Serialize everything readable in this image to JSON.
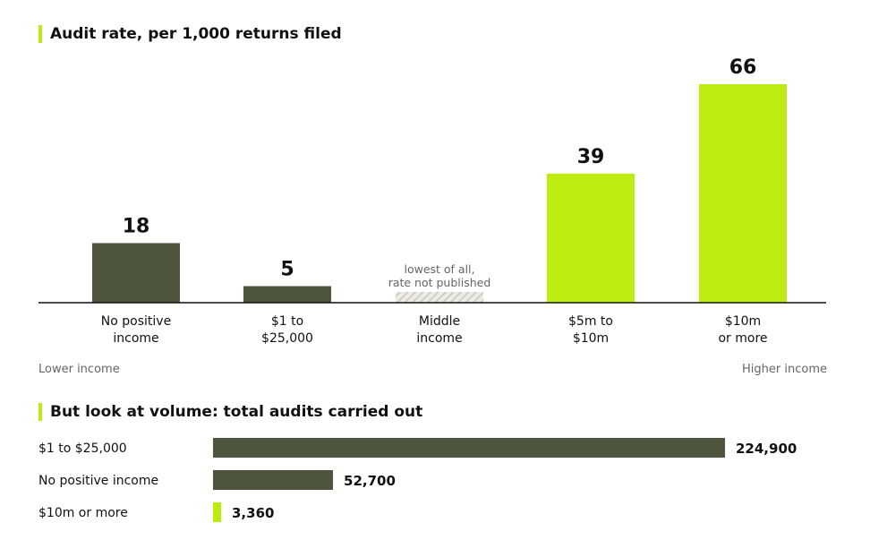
{
  "colors": {
    "dark": "#4d553d",
    "accent": "#bdec11",
    "hatch": "#d8d6cc",
    "muted": "#666666"
  },
  "chart_data": [
    {
      "type": "bar",
      "title": "Audit rate, per 1,000 returns filed",
      "categories": [
        {
          "line1": "No positive",
          "line2": "income"
        },
        {
          "line1": "$1 to",
          "line2": "$25,000"
        },
        {
          "line1": "Middle",
          "line2": "income"
        },
        {
          "line1": "$5m to",
          "line2": "$10m"
        },
        {
          "line1": "$10m",
          "line2": "or more"
        }
      ],
      "values": [
        18,
        5,
        null,
        39,
        66
      ],
      "value_labels": [
        "18",
        "5",
        "",
        "39",
        "66"
      ],
      "highlight": [
        false,
        false,
        false,
        true,
        true
      ],
      "annotation": {
        "line1": "lowest of all,",
        "line2": "rate not published"
      },
      "axis_left_label": "Lower income",
      "axis_right_label": "Higher income",
      "ylim": [
        0,
        66
      ]
    },
    {
      "type": "bar",
      "orientation": "horizontal",
      "title": "But look at volume: total audits carried out",
      "categories": [
        "$1 to $25,000",
        "No positive income",
        "$10m or more"
      ],
      "values": [
        224900,
        52700,
        3360
      ],
      "value_labels": [
        "224,900",
        "52,700",
        "3,360"
      ],
      "highlight": [
        false,
        false,
        true
      ],
      "xlim": [
        0,
        224900
      ]
    }
  ]
}
